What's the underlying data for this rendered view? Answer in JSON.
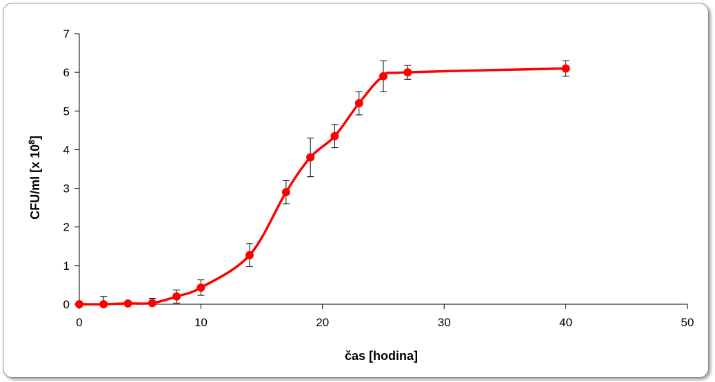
{
  "chart_data": {
    "type": "line",
    "title": "",
    "xlabel": "čas [hodina]",
    "ylabel_main": "CFU/ml [x 10",
    "ylabel_sup": "8",
    "ylabel_close": "]",
    "xlim": [
      0,
      50
    ],
    "ylim": [
      0,
      7
    ],
    "x_ticks": [
      "0",
      "10",
      "20",
      "30",
      "40",
      "50"
    ],
    "y_ticks": [
      "0",
      "1",
      "2",
      "3",
      "4",
      "5",
      "6",
      "7"
    ],
    "grid": false,
    "legend": "none",
    "smooth": true,
    "line_color": "#ff0000",
    "series": [
      {
        "x": [
          0,
          2,
          4,
          6,
          8,
          10,
          14,
          17,
          19,
          21,
          23,
          25,
          27,
          40
        ],
        "y": [
          0.0,
          0.0,
          0.02,
          0.03,
          0.2,
          0.43,
          1.27,
          2.9,
          3.8,
          4.35,
          5.2,
          5.9,
          6.0,
          6.1
        ],
        "err": [
          0.0,
          0.2,
          0.05,
          0.12,
          0.17,
          0.2,
          0.3,
          0.3,
          0.5,
          0.3,
          0.3,
          0.4,
          0.18,
          0.2
        ]
      }
    ]
  }
}
